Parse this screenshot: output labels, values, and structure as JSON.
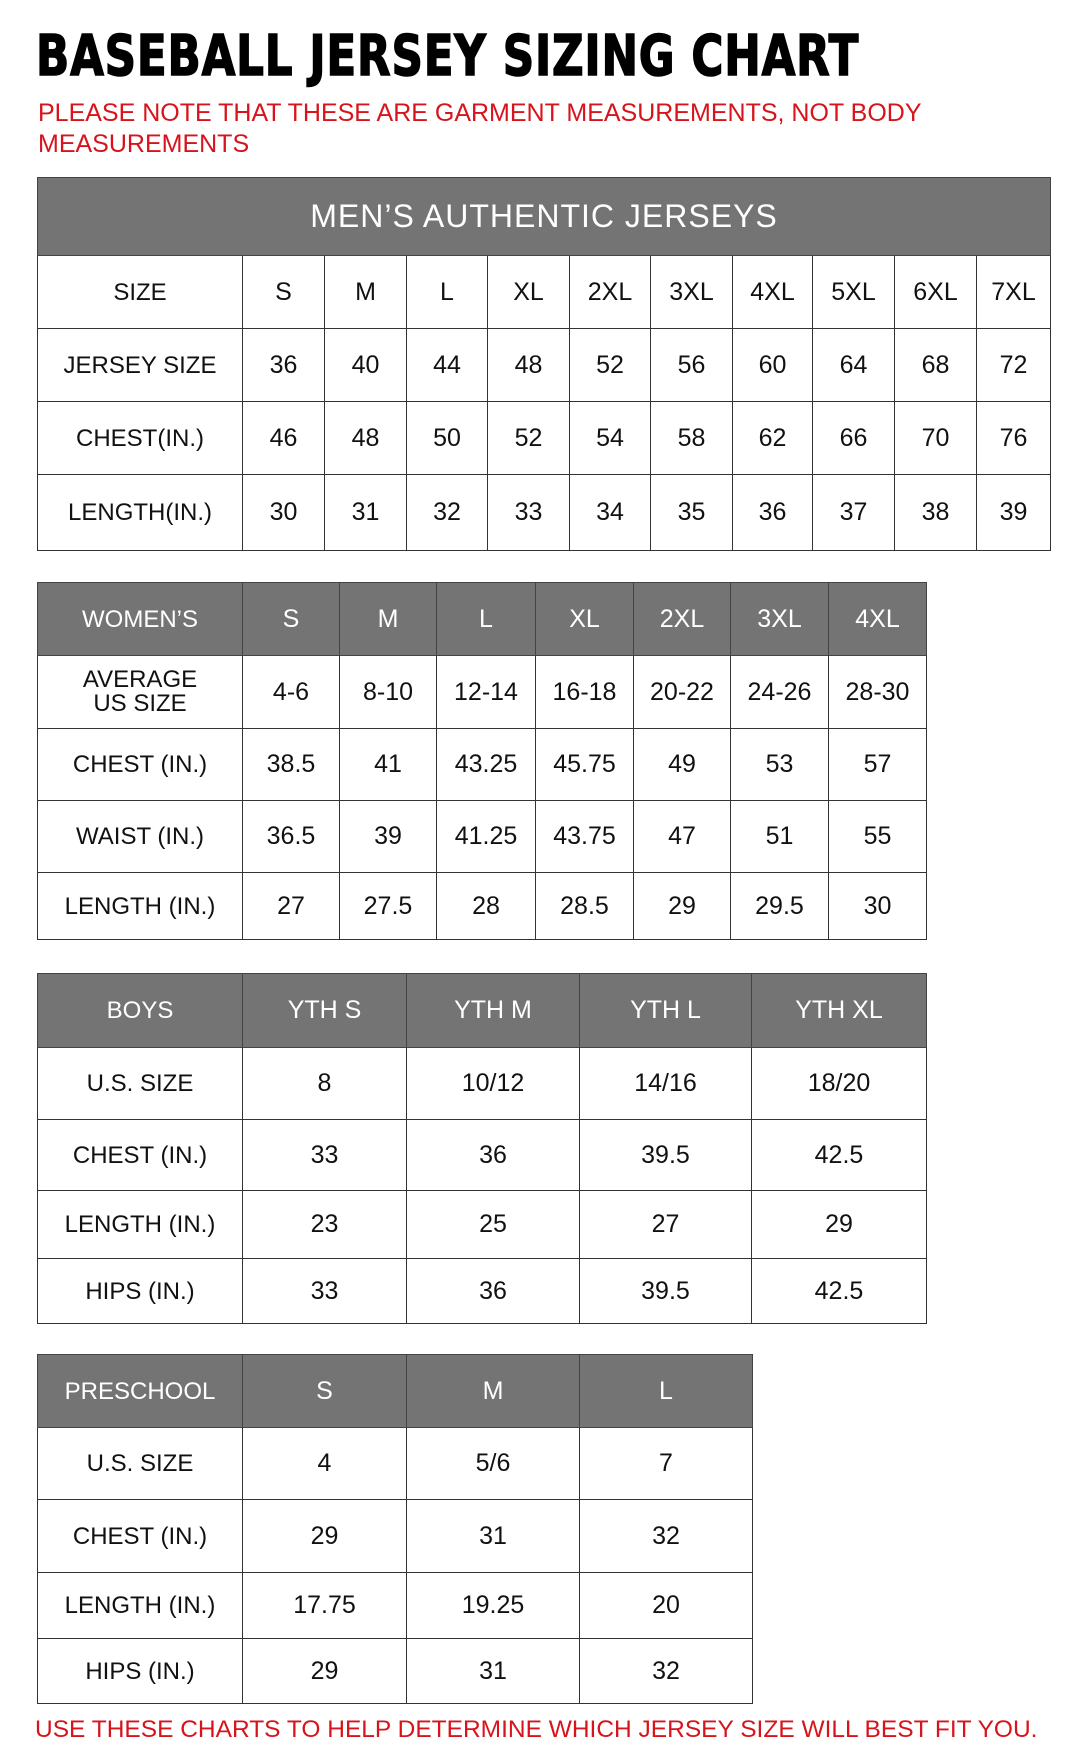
{
  "title": "BASEBALL JERSEY SIZING CHART",
  "note": "PLEASE NOTE THAT THESE ARE GARMENT MEASUREMENTS, NOT BODY MEASUREMENTS",
  "footer": "USE THESE CHARTS TO HELP DETERMINE WHICH JERSEY SIZE WILL BEST FIT YOU.",
  "colors": {
    "header_bg": "#747474",
    "note_red": "#d7141c"
  },
  "tables": [
    {
      "id": "mens",
      "banner": "MEN’S AUTHENTIC JERSEYS",
      "header": [
        "SIZE",
        "S",
        "M",
        "L",
        "XL",
        "2XL",
        "3XL",
        "4XL",
        "5XL",
        "6XL",
        "7XL"
      ],
      "header_shaded": false,
      "rows": [
        [
          "JERSEY SIZE",
          "36",
          "40",
          "44",
          "48",
          "52",
          "56",
          "60",
          "64",
          "68",
          "72"
        ],
        [
          "CHEST(IN.)",
          "46",
          "48",
          "50",
          "52",
          "54",
          "58",
          "62",
          "66",
          "70",
          "76"
        ],
        [
          "LENGTH(IN.)",
          "30",
          "31",
          "32",
          "33",
          "34",
          "35",
          "36",
          "37",
          "38",
          "39"
        ]
      ]
    },
    {
      "id": "womens",
      "header": [
        "WOMEN’S",
        "S",
        "M",
        "L",
        "XL",
        "2XL",
        "3XL",
        "4XL"
      ],
      "header_shaded": true,
      "rows": [
        [
          "AVERAGE US SIZE",
          "4-6",
          "8-10",
          "12-14",
          "16-18",
          "20-22",
          "24-26",
          "28-30"
        ],
        [
          "CHEST (IN.)",
          "38.5",
          "41",
          "43.25",
          "45.75",
          "49",
          "53",
          "57"
        ],
        [
          "WAIST (IN.)",
          "36.5",
          "39",
          "41.25",
          "43.75",
          "47",
          "51",
          "55"
        ],
        [
          "LENGTH (IN.)",
          "27",
          "27.5",
          "28",
          "28.5",
          "29",
          "29.5",
          "30"
        ]
      ]
    },
    {
      "id": "boys",
      "header": [
        "BOYS",
        "YTH S",
        "YTH M",
        "YTH L",
        "YTH XL"
      ],
      "header_shaded": true,
      "rows": [
        [
          "U.S. SIZE",
          "8",
          "10/12",
          "14/16",
          "18/20"
        ],
        [
          "CHEST (IN.)",
          "33",
          "36",
          "39.5",
          "42.5"
        ],
        [
          "LENGTH (IN.)",
          "23",
          "25",
          "27",
          "29"
        ],
        [
          "HIPS (IN.)",
          "33",
          "36",
          "39.5",
          "42.5"
        ]
      ]
    },
    {
      "id": "preschool",
      "header": [
        "PRESCHOOL",
        "S",
        "M",
        "L"
      ],
      "header_shaded": true,
      "rows": [
        [
          "U.S. SIZE",
          "4",
          "5/6",
          "7"
        ],
        [
          "CHEST (IN.)",
          "29",
          "31",
          "32"
        ],
        [
          "LENGTH (IN.)",
          "17.75",
          "19.25",
          "20"
        ],
        [
          "HIPS (IN.)",
          "29",
          "31",
          "32"
        ]
      ]
    }
  ]
}
